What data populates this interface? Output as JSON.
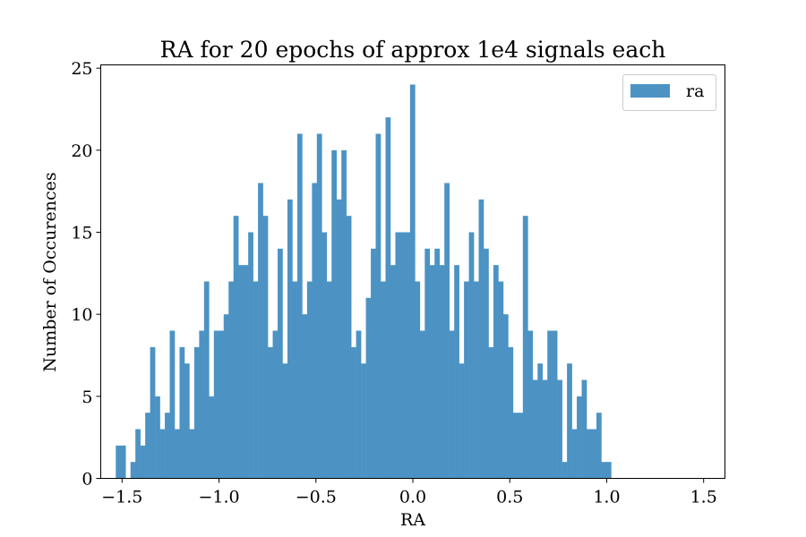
{
  "chart_data": {
    "type": "histogram",
    "title": "RA for 20 epochs of approx 1e4 signals each",
    "xlabel": "RA",
    "ylabel": "Number of Occurences",
    "xlim": [
      -1.61,
      1.61
    ],
    "ylim": [
      0,
      25.2
    ],
    "xticks": [
      -1.5,
      -1.0,
      -0.5,
      0.0,
      0.5,
      1.0,
      1.5
    ],
    "xtick_labels": [
      "−1.5",
      "−1.0",
      "−0.5",
      "0.0",
      "0.5",
      "1.0",
      "1.5"
    ],
    "yticks": [
      0,
      5,
      10,
      15,
      20,
      25
    ],
    "ytick_labels": [
      "0",
      "5",
      "10",
      "15",
      "20",
      "25"
    ],
    "grid": false,
    "legend_position": "upper right",
    "color": "#4c93c4",
    "series": [
      {
        "name": "ra",
        "bin_start": -1.5325,
        "bin_width": 0.0253,
        "counts": [
          2,
          2,
          0,
          1,
          3,
          2,
          4,
          8,
          5,
          3,
          4,
          9,
          3,
          8,
          7,
          3,
          8,
          9,
          12,
          5,
          9,
          9,
          10,
          12,
          16,
          13,
          13,
          15,
          12,
          18,
          16,
          8,
          9,
          14,
          7,
          17,
          12,
          21,
          10,
          12,
          18,
          21,
          15,
          12,
          20,
          17,
          20,
          16,
          8,
          9,
          7,
          11,
          14,
          21,
          12,
          22,
          13,
          15,
          15,
          15,
          24,
          12,
          9,
          14,
          13,
          14,
          13,
          18,
          9,
          13,
          7,
          12,
          15,
          12,
          17,
          14,
          8,
          13,
          12,
          10,
          8,
          4,
          4,
          16,
          9,
          6,
          7,
          6,
          9,
          9,
          6,
          1,
          7,
          3,
          5,
          6,
          3,
          3,
          4,
          1,
          1
        ]
      }
    ]
  }
}
